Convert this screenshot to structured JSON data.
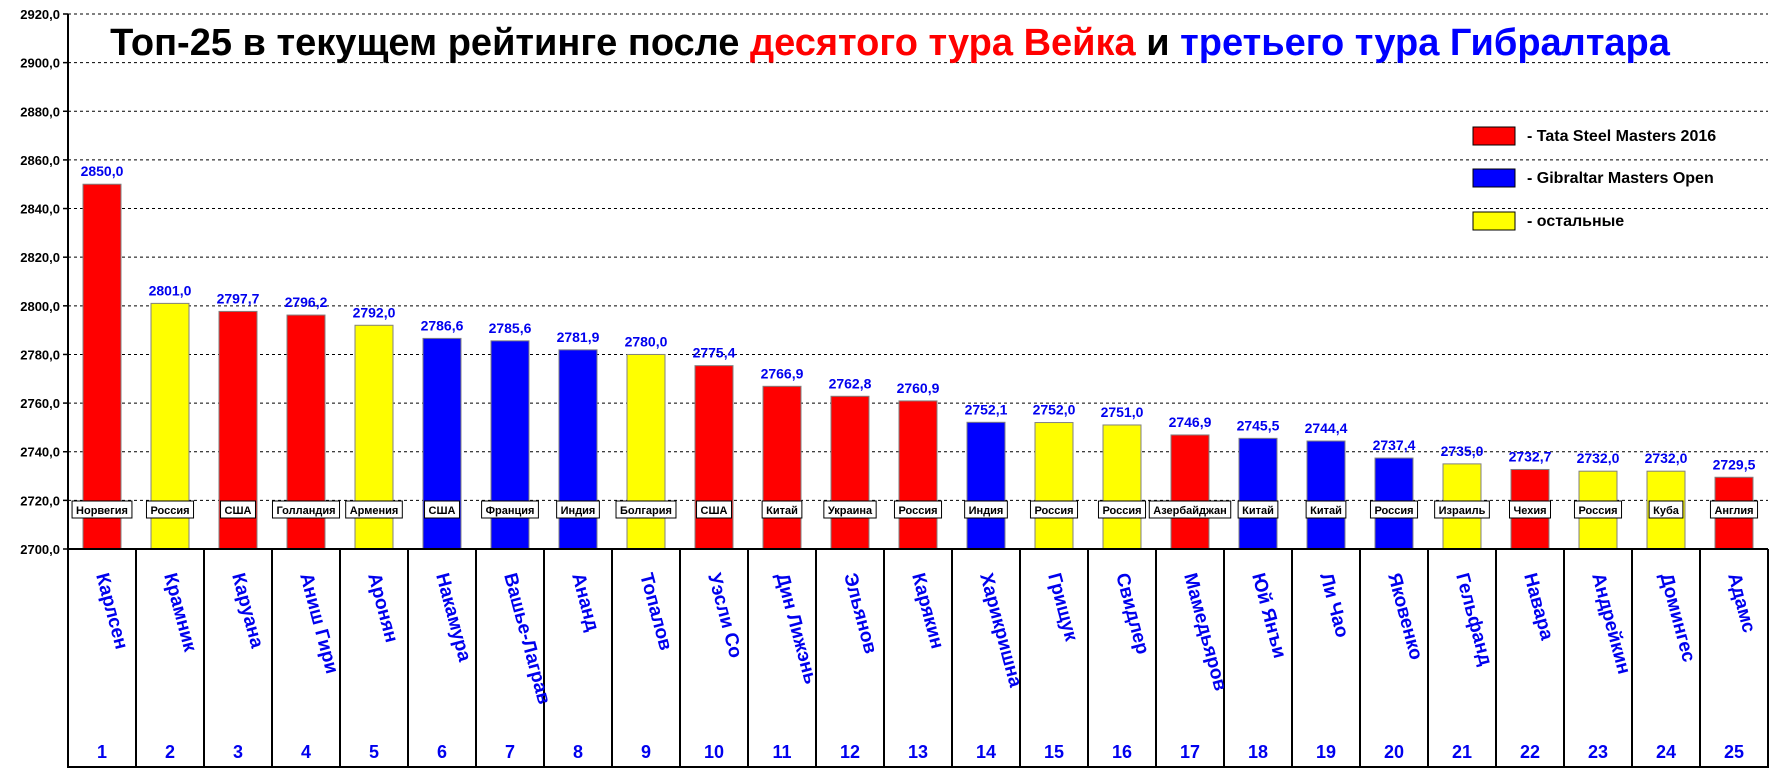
{
  "chart_data": {
    "type": "bar",
    "title_parts": [
      {
        "text": "Топ-25 в текущем рейтинге после ",
        "color": "#000000"
      },
      {
        "text": "десятого тура Вейка",
        "color": "#ff0000"
      },
      {
        "text": " и ",
        "color": "#000000"
      },
      {
        "text": "третьего тура Гибралтара",
        "color": "#0000ff"
      }
    ],
    "ylim": [
      2700,
      2920
    ],
    "ytick_step": 20,
    "ytick_labels": [
      "2700,0",
      "2720,0",
      "2740,0",
      "2760,0",
      "2780,0",
      "2800,0",
      "2820,0",
      "2840,0",
      "2860,0",
      "2880,0",
      "2900,0",
      "2920,0"
    ],
    "grid": true,
    "legend_placement": "top-right",
    "legend": [
      {
        "key": "tata",
        "label": "- Tata Steel Masters 2016",
        "color": "#ff0000"
      },
      {
        "key": "gib",
        "label": "- Gibraltar Masters Open",
        "color": "#0000ff"
      },
      {
        "key": "other",
        "label": "- остальные",
        "color": "#ffff00"
      }
    ],
    "players": [
      {
        "rank": "1",
        "name": "Карлсен",
        "country": "Норвегия",
        "value": 2850.0,
        "label": "2850,0",
        "group": "tata"
      },
      {
        "rank": "2",
        "name": "Крамник",
        "country": "Россия",
        "value": 2801.0,
        "label": "2801,0",
        "group": "other"
      },
      {
        "rank": "3",
        "name": "Каруана",
        "country": "США",
        "value": 2797.7,
        "label": "2797,7",
        "group": "tata"
      },
      {
        "rank": "4",
        "name": "Аниш Гири",
        "country": "Голландия",
        "value": 2796.2,
        "label": "2796,2",
        "group": "tata"
      },
      {
        "rank": "5",
        "name": "Аронян",
        "country": "Армения",
        "value": 2792.0,
        "label": "2792,0",
        "group": "other"
      },
      {
        "rank": "6",
        "name": "Накамура",
        "country": "США",
        "value": 2786.6,
        "label": "2786,6",
        "group": "gib"
      },
      {
        "rank": "7",
        "name": "Вашье-Лаграв",
        "country": "Франция",
        "value": 2785.6,
        "label": "2785,6",
        "group": "gib"
      },
      {
        "rank": "8",
        "name": "Ананд",
        "country": "Индия",
        "value": 2781.9,
        "label": "2781,9",
        "group": "gib"
      },
      {
        "rank": "9",
        "name": "Топалов",
        "country": "Болгария",
        "value": 2780.0,
        "label": "2780,0",
        "group": "other"
      },
      {
        "rank": "10",
        "name": "Уэсли Со",
        "country": "США",
        "value": 2775.4,
        "label": "2775,4",
        "group": "tata"
      },
      {
        "rank": "11",
        "name": "Дин Лижэнь",
        "country": "Китай",
        "value": 2766.9,
        "label": "2766,9",
        "group": "tata"
      },
      {
        "rank": "12",
        "name": "Эльянов",
        "country": "Украина",
        "value": 2762.8,
        "label": "2762,8",
        "group": "tata"
      },
      {
        "rank": "13",
        "name": "Карякин",
        "country": "Россия",
        "value": 2760.9,
        "label": "2760,9",
        "group": "tata"
      },
      {
        "rank": "14",
        "name": "Харикришна",
        "country": "Индия",
        "value": 2752.1,
        "label": "2752,1",
        "group": "gib"
      },
      {
        "rank": "15",
        "name": "Грищук",
        "country": "Россия",
        "value": 2752.0,
        "label": "2752,0",
        "group": "other"
      },
      {
        "rank": "16",
        "name": "Свидлер",
        "country": "Россия",
        "value": 2751.0,
        "label": "2751,0",
        "group": "other"
      },
      {
        "rank": "17",
        "name": "Мамедьяров",
        "country": "Азербайджан",
        "value": 2746.9,
        "label": "2746,9",
        "group": "tata"
      },
      {
        "rank": "18",
        "name": "Юй Янъи",
        "country": "Китай",
        "value": 2745.5,
        "label": "2745,5",
        "group": "gib"
      },
      {
        "rank": "19",
        "name": "Ли Чао",
        "country": "Китай",
        "value": 2744.4,
        "label": "2744,4",
        "group": "gib"
      },
      {
        "rank": "20",
        "name": "Яковенко",
        "country": "Россия",
        "value": 2737.4,
        "label": "2737,4",
        "group": "gib"
      },
      {
        "rank": "21",
        "name": "Гельфанд",
        "country": "Израиль",
        "value": 2735.0,
        "label": "2735,0",
        "group": "other"
      },
      {
        "rank": "22",
        "name": "Навара",
        "country": "Чехия",
        "value": 2732.7,
        "label": "2732,7",
        "group": "tata"
      },
      {
        "rank": "23",
        "name": "Андрейкин",
        "country": "Россия",
        "value": 2732.0,
        "label": "2732,0",
        "group": "other"
      },
      {
        "rank": "24",
        "name": "Домингес",
        "country": "Куба",
        "value": 2732.0,
        "label": "2732,0",
        "group": "other"
      },
      {
        "rank": "25",
        "name": "Адамс",
        "country": "Англия",
        "value": 2729.5,
        "label": "2729,5",
        "group": "tata"
      }
    ]
  }
}
